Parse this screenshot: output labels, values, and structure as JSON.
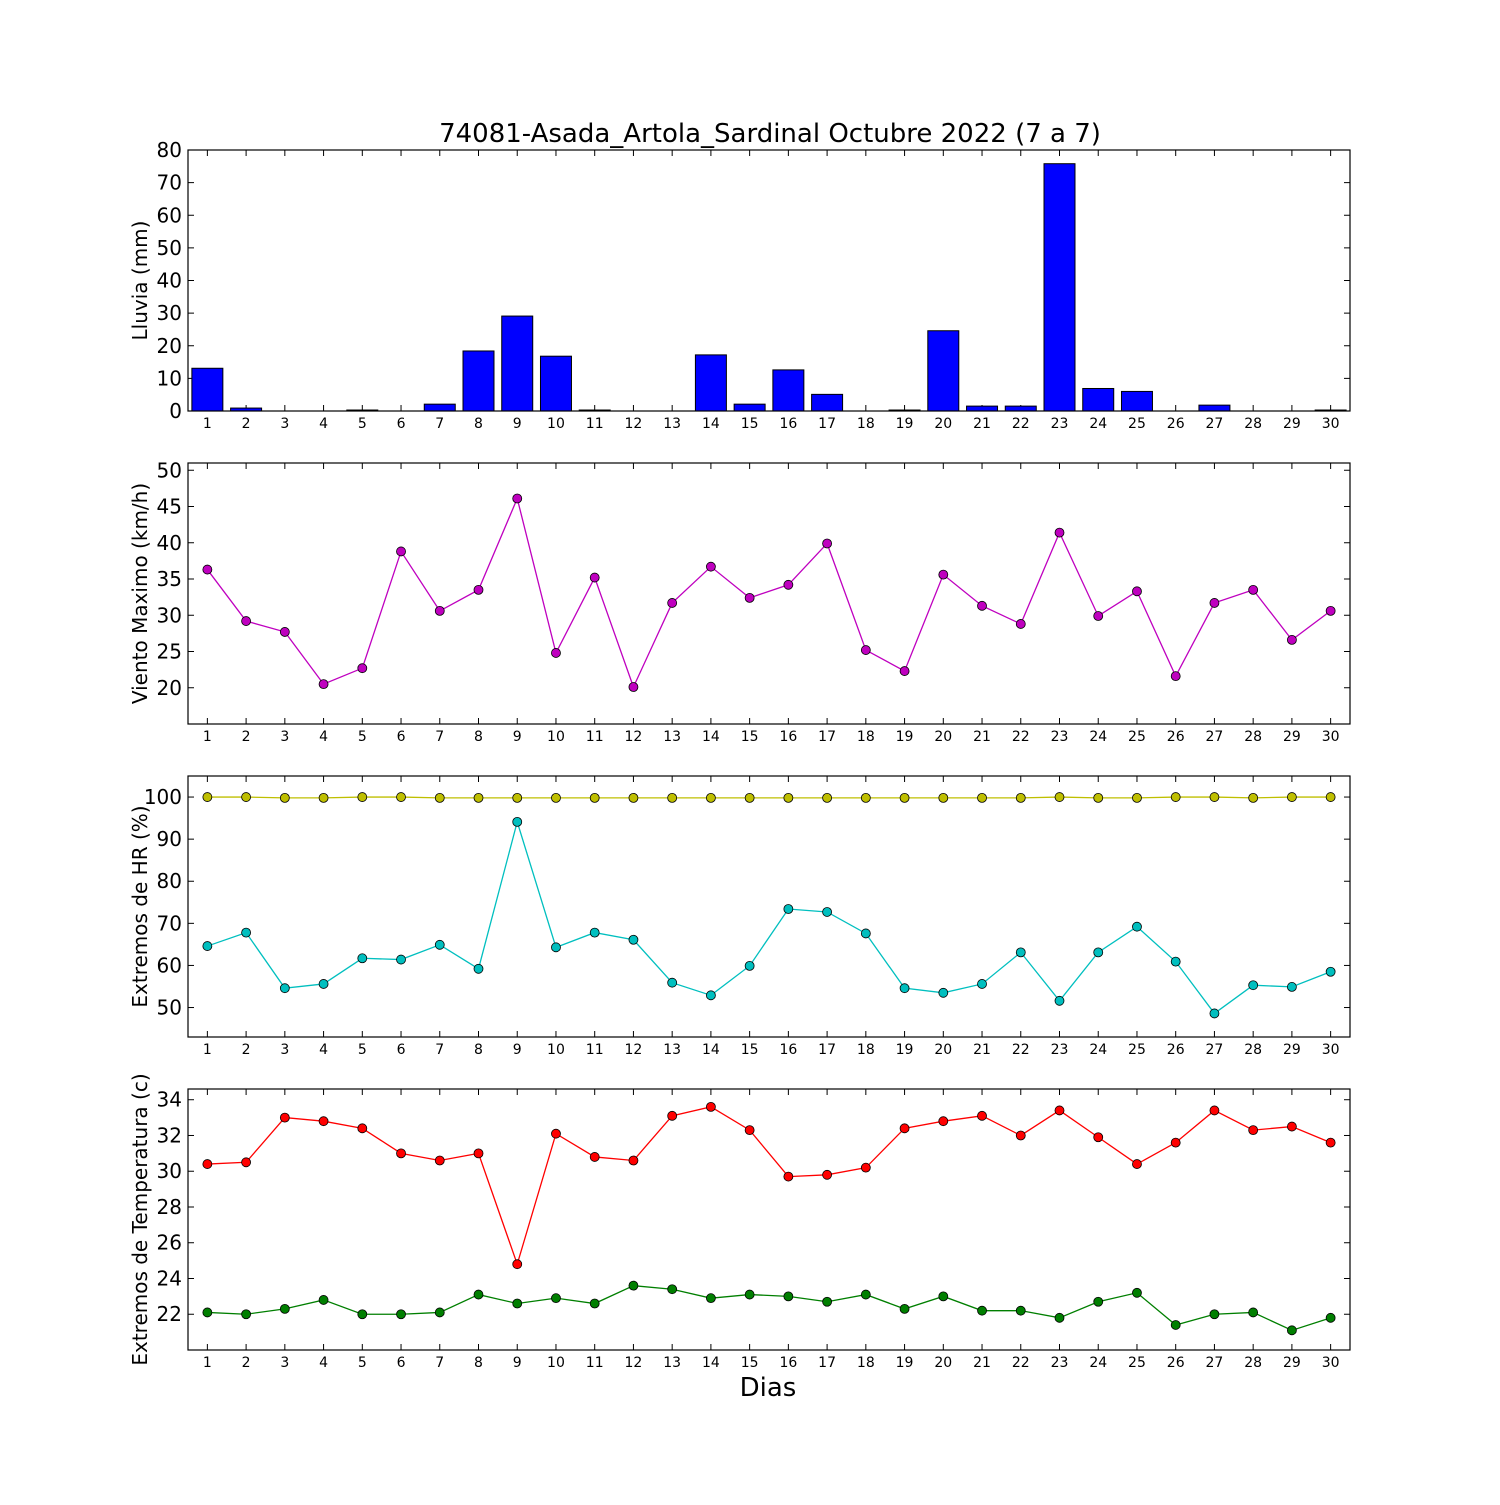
{
  "chart_data": {
    "title": "74081-Asada_Artola_Sardinal Octubre 2022  (7 a 7)",
    "xlabel": "Dias",
    "x": [
      1,
      2,
      3,
      4,
      5,
      6,
      7,
      8,
      9,
      10,
      11,
      12,
      13,
      14,
      15,
      16,
      17,
      18,
      19,
      20,
      21,
      22,
      23,
      24,
      25,
      26,
      27,
      28,
      29,
      30
    ],
    "panels": [
      {
        "type": "bar",
        "ylabel": "Lluvia (mm)",
        "ylim": [
          0,
          80
        ],
        "yticks": [
          0,
          10,
          20,
          30,
          40,
          50,
          60,
          70,
          80
        ],
        "series": [
          {
            "color": "#0000ff",
            "values": [
              13.1,
              0.9,
              0,
              0,
              0.3,
              0,
              2.1,
              18.4,
              29.1,
              16.8,
              0.3,
              0,
              0,
              17.2,
              2.1,
              12.6,
              5.1,
              0,
              0.3,
              24.6,
              1.5,
              1.5,
              75.8,
              6.9,
              6.0,
              0,
              1.8,
              0,
              0,
              0.3
            ]
          }
        ]
      },
      {
        "type": "line",
        "ylabel": "Viento Maximo (km/h)",
        "ylim": [
          15,
          51
        ],
        "yticks": [
          20,
          25,
          30,
          35,
          40,
          45,
          50
        ],
        "series": [
          {
            "color": "#bf00bf",
            "values": [
              36.3,
              29.2,
              27.7,
              20.5,
              22.7,
              38.8,
              30.6,
              33.5,
              46.1,
              24.8,
              35.2,
              20.1,
              31.7,
              36.7,
              32.4,
              34.2,
              39.9,
              25.2,
              22.3,
              35.6,
              31.3,
              28.8,
              41.4,
              29.9,
              33.3,
              21.6,
              31.7,
              33.5,
              26.6,
              30.6
            ]
          }
        ]
      },
      {
        "type": "line",
        "ylabel": "Extremos de HR (%)",
        "ylim": [
          43,
          105
        ],
        "yticks": [
          50,
          60,
          70,
          80,
          90,
          100
        ],
        "series": [
          {
            "color": "#bfbf00",
            "values": [
              100,
              100,
              99.8,
              99.8,
              100,
              100,
              99.8,
              99.8,
              99.8,
              99.8,
              99.8,
              99.8,
              99.8,
              99.8,
              99.8,
              99.8,
              99.8,
              99.8,
              99.8,
              99.8,
              99.8,
              99.8,
              100,
              99.8,
              99.8,
              100,
              100,
              99.8,
              100,
              100
            ]
          },
          {
            "color": "#00bfbf",
            "values": [
              64.6,
              67.8,
              54.6,
              55.6,
              61.7,
              61.4,
              64.9,
              59.2,
              94.1,
              64.3,
              67.8,
              66.1,
              55.9,
              52.9,
              59.9,
              73.4,
              72.7,
              67.6,
              54.6,
              53.5,
              55.6,
              63.1,
              51.6,
              63.1,
              69.2,
              60.9,
              48.6,
              55.3,
              54.9,
              58.5
            ]
          }
        ]
      },
      {
        "type": "line",
        "ylabel": "Extremos de Temperatura (c)",
        "ylim": [
          20,
          34.6
        ],
        "yticks": [
          22,
          24,
          26,
          28,
          30,
          32,
          34
        ],
        "series": [
          {
            "color": "#ff0000",
            "values": [
              30.4,
              30.5,
              33.0,
              32.8,
              32.4,
              31.0,
              30.6,
              31.0,
              24.8,
              32.1,
              30.8,
              30.6,
              33.1,
              33.6,
              32.3,
              29.7,
              29.8,
              30.2,
              32.4,
              32.8,
              33.1,
              32.0,
              33.4,
              31.9,
              30.4,
              31.6,
              33.4,
              32.3,
              32.5,
              31.6
            ]
          },
          {
            "color": "#007f00",
            "values": [
              22.1,
              22.0,
              22.3,
              22.8,
              22.0,
              22.0,
              22.1,
              23.1,
              22.6,
              22.9,
              22.6,
              23.6,
              23.4,
              22.9,
              23.1,
              23.0,
              22.7,
              23.1,
              22.3,
              23.0,
              22.2,
              22.2,
              21.8,
              22.7,
              23.2,
              21.4,
              22.0,
              22.1,
              21.1,
              21.8
            ]
          }
        ]
      }
    ]
  }
}
